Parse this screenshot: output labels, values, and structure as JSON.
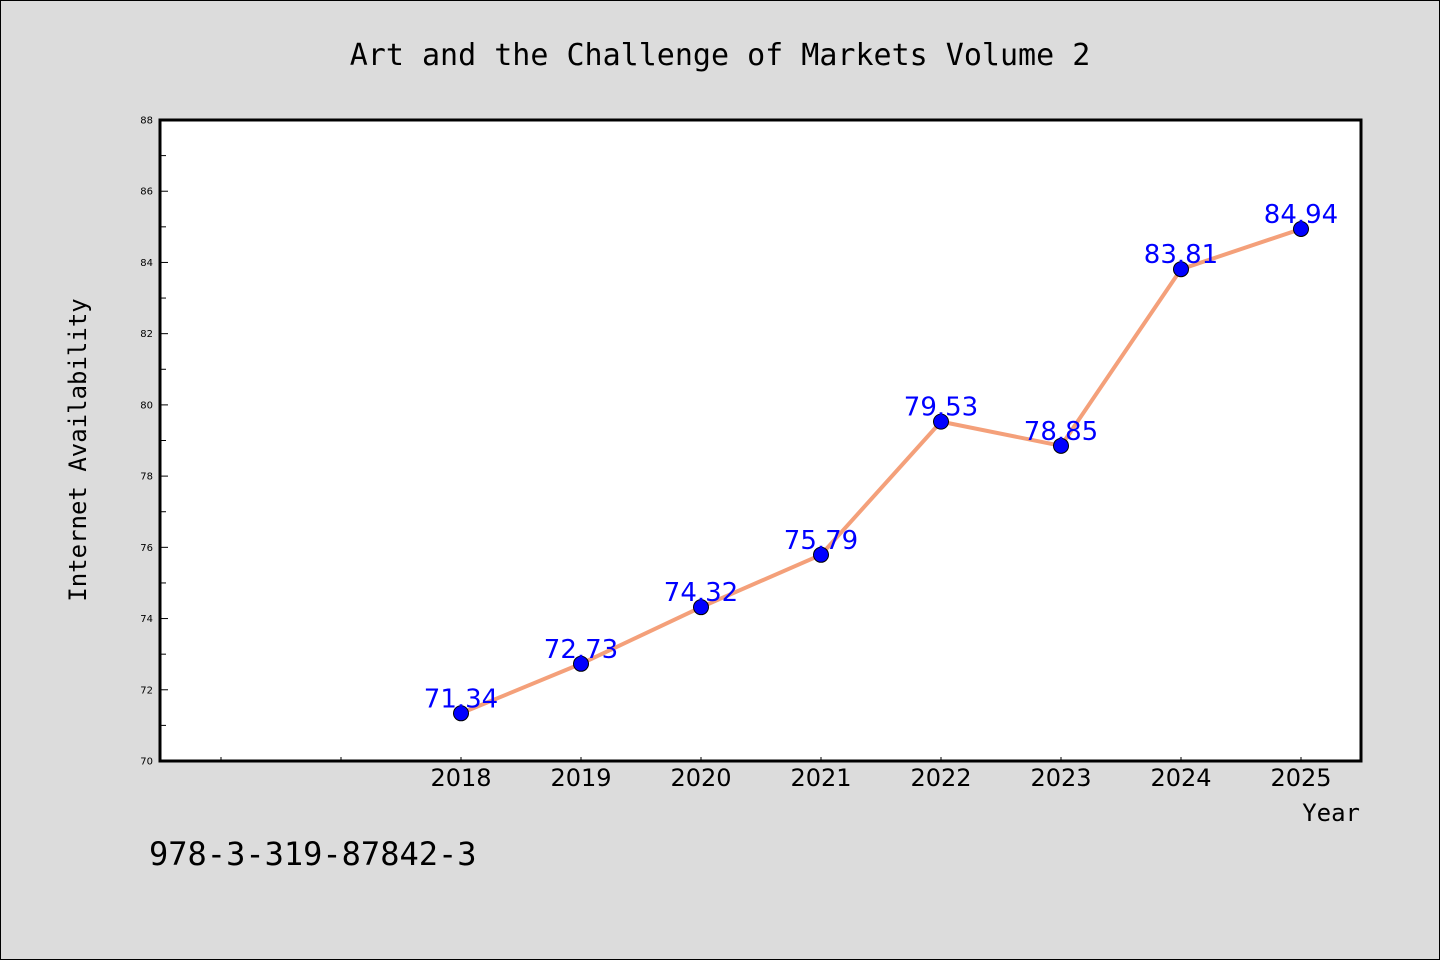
{
  "chart_data": {
    "type": "line",
    "title": "Art and the Challenge of Markets Volume 2",
    "xlabel": "Year",
    "ylabel": "Internet Availability",
    "categories": [
      "2018",
      "2019",
      "2020",
      "2021",
      "2022",
      "2023",
      "2024",
      "2025"
    ],
    "series": [
      {
        "values": [
          71.34,
          72.73,
          74.32,
          75.79,
          79.53,
          78.85,
          83.81,
          84.94
        ]
      }
    ],
    "data_labels": [
      "71.34",
      "72.73",
      "74.32",
      "75.79",
      "79.53",
      "78.85",
      "83.81",
      "84.94"
    ],
    "yticks": [
      "70",
      "72",
      "74",
      "76",
      "78",
      "80",
      "82",
      "84",
      "86",
      "88"
    ],
    "ylim": [
      70,
      88
    ],
    "grid": false,
    "legend": "none",
    "line_color": "#f4a07a",
    "marker_color": "#0000ff",
    "label_color": "#0000ff",
    "background_color": "#dcdcdc",
    "plot_background_color": "#ffffff",
    "annotation": "978-3-319-87842-3"
  }
}
